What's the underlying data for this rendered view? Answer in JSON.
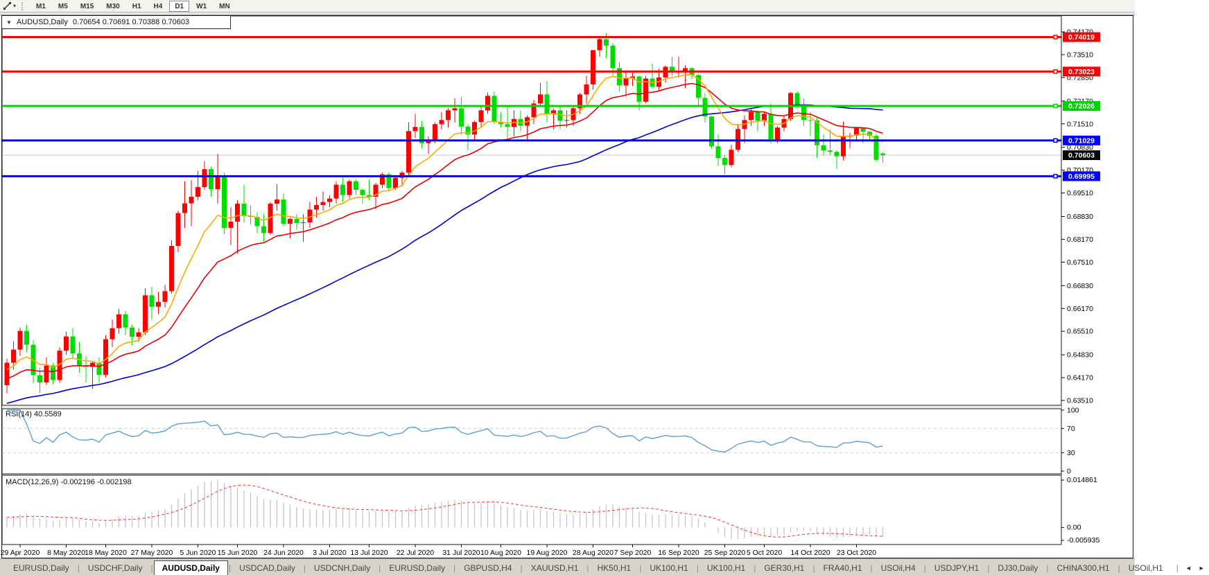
{
  "toolbar": {
    "cursor_tool_caret": "▾",
    "timeframes": [
      {
        "label": "M1",
        "active": false
      },
      {
        "label": "M5",
        "active": false
      },
      {
        "label": "M15",
        "active": false
      },
      {
        "label": "M30",
        "active": false
      },
      {
        "label": "H1",
        "active": false
      },
      {
        "label": "H4",
        "active": false
      },
      {
        "label": "D1",
        "active": true
      },
      {
        "label": "W1",
        "active": false
      },
      {
        "label": "MN",
        "active": false
      }
    ]
  },
  "chart_window": {
    "collapse_icon": "▼",
    "symbol_title": "AUDUSD,Daily",
    "ohlc_title": "0.70654 0.70691 0.70388 0.70603"
  },
  "chart_data": {
    "type": "candlestick",
    "symbol": "AUDUSD",
    "timeframe": "Daily",
    "title": "AUDUSD,Daily",
    "ylim": [
      0.6337,
      0.74631
    ],
    "up_color": "#ff0000",
    "down_color": "#00dd00",
    "y_axis_ticks": [
      "0.74170",
      "0.73510",
      "0.72850",
      "0.72170",
      "0.71510",
      "0.70830",
      "0.70170",
      "0.69510",
      "0.68830",
      "0.68170",
      "0.67510",
      "0.66830",
      "0.66170",
      "0.65510",
      "0.64830",
      "0.64170",
      "0.63510"
    ],
    "x_labels": [
      {
        "text": "29 Apr 2020",
        "index": 2
      },
      {
        "text": "8 May 2020",
        "index": 9
      },
      {
        "text": "18 May 2020",
        "index": 15
      },
      {
        "text": "27 May 2020",
        "index": 22
      },
      {
        "text": "5 Jun 2020",
        "index": 29
      },
      {
        "text": "15 Jun 2020",
        "index": 35
      },
      {
        "text": "24 Jun 2020",
        "index": 42
      },
      {
        "text": "3 Jul 2020",
        "index": 49
      },
      {
        "text": "13 Jul 2020",
        "index": 55
      },
      {
        "text": "22 Jul 2020",
        "index": 62
      },
      {
        "text": "31 Jul 2020",
        "index": 69
      },
      {
        "text": "10 Aug 2020",
        "index": 75
      },
      {
        "text": "19 Aug 2020",
        "index": 82
      },
      {
        "text": "28 Aug 2020",
        "index": 89
      },
      {
        "text": "7 Sep 2020",
        "index": 95
      },
      {
        "text": "16 Sep 2020",
        "index": 102
      },
      {
        "text": "25 Sep 2020",
        "index": 109
      },
      {
        "text": "5 Oct 2020",
        "index": 115
      },
      {
        "text": "14 Oct 2020",
        "index": 122
      },
      {
        "text": "23 Oct 2020",
        "index": 129
      }
    ],
    "candles": [
      [
        0.6395,
        0.6472,
        0.6372,
        0.646
      ],
      [
        0.646,
        0.6522,
        0.644,
        0.6498
      ],
      [
        0.6498,
        0.6562,
        0.648,
        0.6552
      ],
      [
        0.6552,
        0.657,
        0.649,
        0.6512
      ],
      [
        0.6512,
        0.6525,
        0.64,
        0.6424
      ],
      [
        0.6424,
        0.6445,
        0.6372,
        0.6403
      ],
      [
        0.6403,
        0.6476,
        0.6395,
        0.6452
      ],
      [
        0.6452,
        0.646,
        0.6398,
        0.641
      ],
      [
        0.641,
        0.6505,
        0.6402,
        0.6495
      ],
      [
        0.6495,
        0.655,
        0.6483,
        0.6536
      ],
      [
        0.6536,
        0.656,
        0.647,
        0.6487
      ],
      [
        0.6487,
        0.652,
        0.6432,
        0.645
      ],
      [
        0.645,
        0.648,
        0.6403,
        0.6448
      ],
      [
        0.6448,
        0.6465,
        0.6385,
        0.646
      ],
      [
        0.646,
        0.6475,
        0.6402,
        0.6425
      ],
      [
        0.6425,
        0.654,
        0.6417,
        0.6528
      ],
      [
        0.6528,
        0.6585,
        0.6505,
        0.656
      ],
      [
        0.656,
        0.6616,
        0.6545,
        0.66
      ],
      [
        0.66,
        0.661,
        0.654,
        0.6562
      ],
      [
        0.6562,
        0.657,
        0.651,
        0.6535
      ],
      [
        0.6535,
        0.656,
        0.652,
        0.6548
      ],
      [
        0.6548,
        0.6675,
        0.654,
        0.6655
      ],
      [
        0.6655,
        0.668,
        0.6585,
        0.6622
      ],
      [
        0.6622,
        0.6665,
        0.6601,
        0.6636
      ],
      [
        0.6636,
        0.6685,
        0.662,
        0.6667
      ],
      [
        0.6667,
        0.6815,
        0.666,
        0.6798
      ],
      [
        0.6798,
        0.69,
        0.678,
        0.6893
      ],
      [
        0.6893,
        0.6985,
        0.685,
        0.6921
      ],
      [
        0.6921,
        0.6988,
        0.6855,
        0.694
      ],
      [
        0.694,
        0.7015,
        0.693,
        0.6968
      ],
      [
        0.6968,
        0.7043,
        0.696,
        0.702
      ],
      [
        0.702,
        0.7027,
        0.694,
        0.6962
      ],
      [
        0.6962,
        0.7064,
        0.692,
        0.7
      ],
      [
        0.7,
        0.701,
        0.6832,
        0.685
      ],
      [
        0.685,
        0.691,
        0.68,
        0.6868
      ],
      [
        0.6868,
        0.693,
        0.6776,
        0.692
      ],
      [
        0.692,
        0.6975,
        0.6865,
        0.6885
      ],
      [
        0.6885,
        0.6915,
        0.686,
        0.6882
      ],
      [
        0.6882,
        0.6895,
        0.6835,
        0.6855
      ],
      [
        0.6855,
        0.689,
        0.681,
        0.6835
      ],
      [
        0.6835,
        0.6925,
        0.683,
        0.692
      ],
      [
        0.692,
        0.6977,
        0.69,
        0.6932
      ],
      [
        0.6932,
        0.695,
        0.6855,
        0.6862
      ],
      [
        0.6862,
        0.688,
        0.682,
        0.6876
      ],
      [
        0.6876,
        0.689,
        0.6845,
        0.6864
      ],
      [
        0.6864,
        0.689,
        0.681,
        0.6866
      ],
      [
        0.6866,
        0.6925,
        0.685,
        0.6903
      ],
      [
        0.6903,
        0.694,
        0.688,
        0.6916
      ],
      [
        0.6916,
        0.6955,
        0.69,
        0.6925
      ],
      [
        0.6925,
        0.6945,
        0.691,
        0.6935
      ],
      [
        0.6935,
        0.6985,
        0.692,
        0.6975
      ],
      [
        0.6975,
        0.6995,
        0.6925,
        0.6945
      ],
      [
        0.6945,
        0.699,
        0.6935,
        0.6985
      ],
      [
        0.6985,
        0.699,
        0.6945,
        0.696
      ],
      [
        0.696,
        0.6965,
        0.692,
        0.6945
      ],
      [
        0.6945,
        0.699,
        0.693,
        0.694
      ],
      [
        0.694,
        0.698,
        0.6905,
        0.6975
      ],
      [
        0.6975,
        0.701,
        0.6965,
        0.7005
      ],
      [
        0.7005,
        0.701,
        0.6955,
        0.6965
      ],
      [
        0.6965,
        0.7,
        0.696,
        0.6995
      ],
      [
        0.6995,
        0.7015,
        0.697,
        0.701
      ],
      [
        0.701,
        0.7155,
        0.7,
        0.713
      ],
      [
        0.713,
        0.718,
        0.711,
        0.7142
      ],
      [
        0.7142,
        0.716,
        0.708,
        0.7095
      ],
      [
        0.7095,
        0.7115,
        0.7064,
        0.7105
      ],
      [
        0.7105,
        0.7155,
        0.7095,
        0.715
      ],
      [
        0.715,
        0.7185,
        0.7135,
        0.7162
      ],
      [
        0.7162,
        0.7197,
        0.714,
        0.719
      ],
      [
        0.719,
        0.7225,
        0.7155,
        0.7196
      ],
      [
        0.7196,
        0.7228,
        0.712,
        0.7143
      ],
      [
        0.7143,
        0.715,
        0.7075,
        0.712
      ],
      [
        0.712,
        0.716,
        0.71,
        0.7156
      ],
      [
        0.7156,
        0.7202,
        0.714,
        0.719
      ],
      [
        0.719,
        0.7242,
        0.718,
        0.7232
      ],
      [
        0.7232,
        0.7245,
        0.715,
        0.7156
      ],
      [
        0.7156,
        0.7185,
        0.714,
        0.715
      ],
      [
        0.715,
        0.72,
        0.711,
        0.7142
      ],
      [
        0.7142,
        0.719,
        0.7115,
        0.7165
      ],
      [
        0.7165,
        0.719,
        0.713,
        0.7146
      ],
      [
        0.7146,
        0.7175,
        0.7105,
        0.717
      ],
      [
        0.717,
        0.722,
        0.715,
        0.721
      ],
      [
        0.721,
        0.727,
        0.72,
        0.7236
      ],
      [
        0.7236,
        0.7275,
        0.7155,
        0.718
      ],
      [
        0.718,
        0.7195,
        0.7135,
        0.719
      ],
      [
        0.719,
        0.72,
        0.7135,
        0.716
      ],
      [
        0.716,
        0.719,
        0.714,
        0.7162
      ],
      [
        0.7162,
        0.72,
        0.7145,
        0.7196
      ],
      [
        0.7196,
        0.724,
        0.718,
        0.7236
      ],
      [
        0.7236,
        0.729,
        0.721,
        0.7265
      ],
      [
        0.7265,
        0.7365,
        0.725,
        0.7364
      ],
      [
        0.7364,
        0.7405,
        0.7345,
        0.7396
      ],
      [
        0.7396,
        0.7414,
        0.734,
        0.7377
      ],
      [
        0.7377,
        0.7385,
        0.729,
        0.7312
      ],
      [
        0.7312,
        0.733,
        0.7245,
        0.7262
      ],
      [
        0.7262,
        0.73,
        0.723,
        0.7282
      ],
      [
        0.7282,
        0.73,
        0.726,
        0.7288
      ],
      [
        0.7288,
        0.729,
        0.719,
        0.7215
      ],
      [
        0.7215,
        0.729,
        0.721,
        0.7282
      ],
      [
        0.7282,
        0.7325,
        0.7254,
        0.7258
      ],
      [
        0.7258,
        0.731,
        0.7245,
        0.7285
      ],
      [
        0.7285,
        0.732,
        0.727,
        0.7316
      ],
      [
        0.7316,
        0.7345,
        0.729,
        0.7302
      ],
      [
        0.7302,
        0.7345,
        0.7285,
        0.7305
      ],
      [
        0.7305,
        0.732,
        0.7255,
        0.7312
      ],
      [
        0.7312,
        0.7315,
        0.728,
        0.7292
      ],
      [
        0.7292,
        0.7295,
        0.72,
        0.7226
      ],
      [
        0.7226,
        0.724,
        0.7155,
        0.7172
      ],
      [
        0.7172,
        0.7175,
        0.708,
        0.7086
      ],
      [
        0.7086,
        0.712,
        0.703,
        0.7052
      ],
      [
        0.7052,
        0.706,
        0.7005,
        0.7032
      ],
      [
        0.7032,
        0.709,
        0.7025,
        0.7076
      ],
      [
        0.7076,
        0.715,
        0.707,
        0.7136
      ],
      [
        0.7136,
        0.7175,
        0.7095,
        0.7162
      ],
      [
        0.7162,
        0.7195,
        0.7145,
        0.7186
      ],
      [
        0.7186,
        0.719,
        0.713,
        0.716
      ],
      [
        0.716,
        0.7185,
        0.7145,
        0.718
      ],
      [
        0.718,
        0.721,
        0.7095,
        0.7106
      ],
      [
        0.7106,
        0.7145,
        0.7095,
        0.714
      ],
      [
        0.714,
        0.7175,
        0.713,
        0.7165
      ],
      [
        0.7165,
        0.7243,
        0.716,
        0.724
      ],
      [
        0.724,
        0.7245,
        0.7195,
        0.7205
      ],
      [
        0.7205,
        0.7225,
        0.7145,
        0.7162
      ],
      [
        0.7162,
        0.7185,
        0.7115,
        0.7161
      ],
      [
        0.7161,
        0.717,
        0.7052,
        0.7089
      ],
      [
        0.7089,
        0.712,
        0.706,
        0.7074
      ],
      [
        0.7074,
        0.7135,
        0.706,
        0.707
      ],
      [
        0.707,
        0.7075,
        0.7021,
        0.7057
      ],
      [
        0.7057,
        0.7158,
        0.7045,
        0.7114
      ],
      [
        0.7114,
        0.7125,
        0.708,
        0.7117
      ],
      [
        0.7117,
        0.714,
        0.71,
        0.7139
      ],
      [
        0.7139,
        0.714,
        0.7095,
        0.7128
      ],
      [
        0.7128,
        0.713,
        0.7105,
        0.7116
      ],
      [
        0.7116,
        0.7122,
        0.7043,
        0.7047
      ],
      [
        0.70654,
        0.70691,
        0.70388,
        0.70603
      ]
    ],
    "moving_averages": [
      {
        "name": "fast",
        "period": 10,
        "color": "#ffa800"
      },
      {
        "name": "medium",
        "period": 22,
        "color": "#e60000"
      },
      {
        "name": "slow",
        "period": 55,
        "color": "#0000cc"
      }
    ],
    "prehistory_seed": {
      "start": 0.62,
      "end": 0.6455,
      "count": 60
    },
    "horizontal_lines": [
      {
        "price": 0.74019,
        "label": "0.74019",
        "color": "#ff0000",
        "thickness": 3
      },
      {
        "price": 0.73023,
        "label": "0.73023",
        "color": "#ff0000",
        "thickness": 3
      },
      {
        "price": 0.72026,
        "label": "0.72026",
        "color": "#00d400",
        "thickness": 3
      },
      {
        "price": 0.71029,
        "label": "0.71029",
        "color": "#0000ff",
        "thickness": 3
      },
      {
        "price": 0.69995,
        "label": "0.69995",
        "color": "#0000ff",
        "thickness": 3
      }
    ],
    "current_price": {
      "price": 0.70603,
      "label": "0.70603",
      "line_color": "#c4c4c4",
      "tag_bg": "#000000"
    },
    "rsi_pane": {
      "label": "RSI(14)",
      "value": "40.5589",
      "period": 14,
      "levels": [
        100,
        70,
        30,
        0
      ],
      "level_labels": [
        "100",
        "70",
        "30",
        "0"
      ],
      "dashed_levels": [
        70,
        30
      ],
      "line_color": "#58a0da"
    },
    "macd_pane": {
      "label": "MACD(12,26,9)",
      "values": "-0.002196 -0.002198",
      "fast": 12,
      "slow": 26,
      "signal": 9,
      "axis_top_label": "0.014861",
      "axis_zero_label": "0.00",
      "axis_bottom_label": "-0.005935",
      "hist_color": "#bfbfbf",
      "signal_color": "#ff2a2a"
    }
  },
  "tabs": [
    {
      "label": "EURUSD,Daily",
      "active": false
    },
    {
      "label": "USDCHF,Daily",
      "active": false
    },
    {
      "label": "AUDUSD,Daily",
      "active": true
    },
    {
      "label": "USDCAD,Daily",
      "active": false
    },
    {
      "label": "USDCNH,Daily",
      "active": false
    },
    {
      "label": "EURUSD,Daily",
      "active": false
    },
    {
      "label": "GBPUSD,H4",
      "active": false
    },
    {
      "label": "XAUUSD,H1",
      "active": false
    },
    {
      "label": "HK50,H1",
      "active": false
    },
    {
      "label": "UK100,H1",
      "active": false
    },
    {
      "label": "UK100,H1",
      "active": false
    },
    {
      "label": "GER30,H1",
      "active": false
    },
    {
      "label": "FRA40,H1",
      "active": false
    },
    {
      "label": "USOil,H4",
      "active": false
    },
    {
      "label": "USDJPY,H1",
      "active": false
    },
    {
      "label": "DJ30,Daily",
      "active": false
    },
    {
      "label": "CHINA300,H1",
      "active": false
    },
    {
      "label": "USOil,H1",
      "active": false
    }
  ],
  "tab_scroll": {
    "left": "◄",
    "right": "►"
  }
}
